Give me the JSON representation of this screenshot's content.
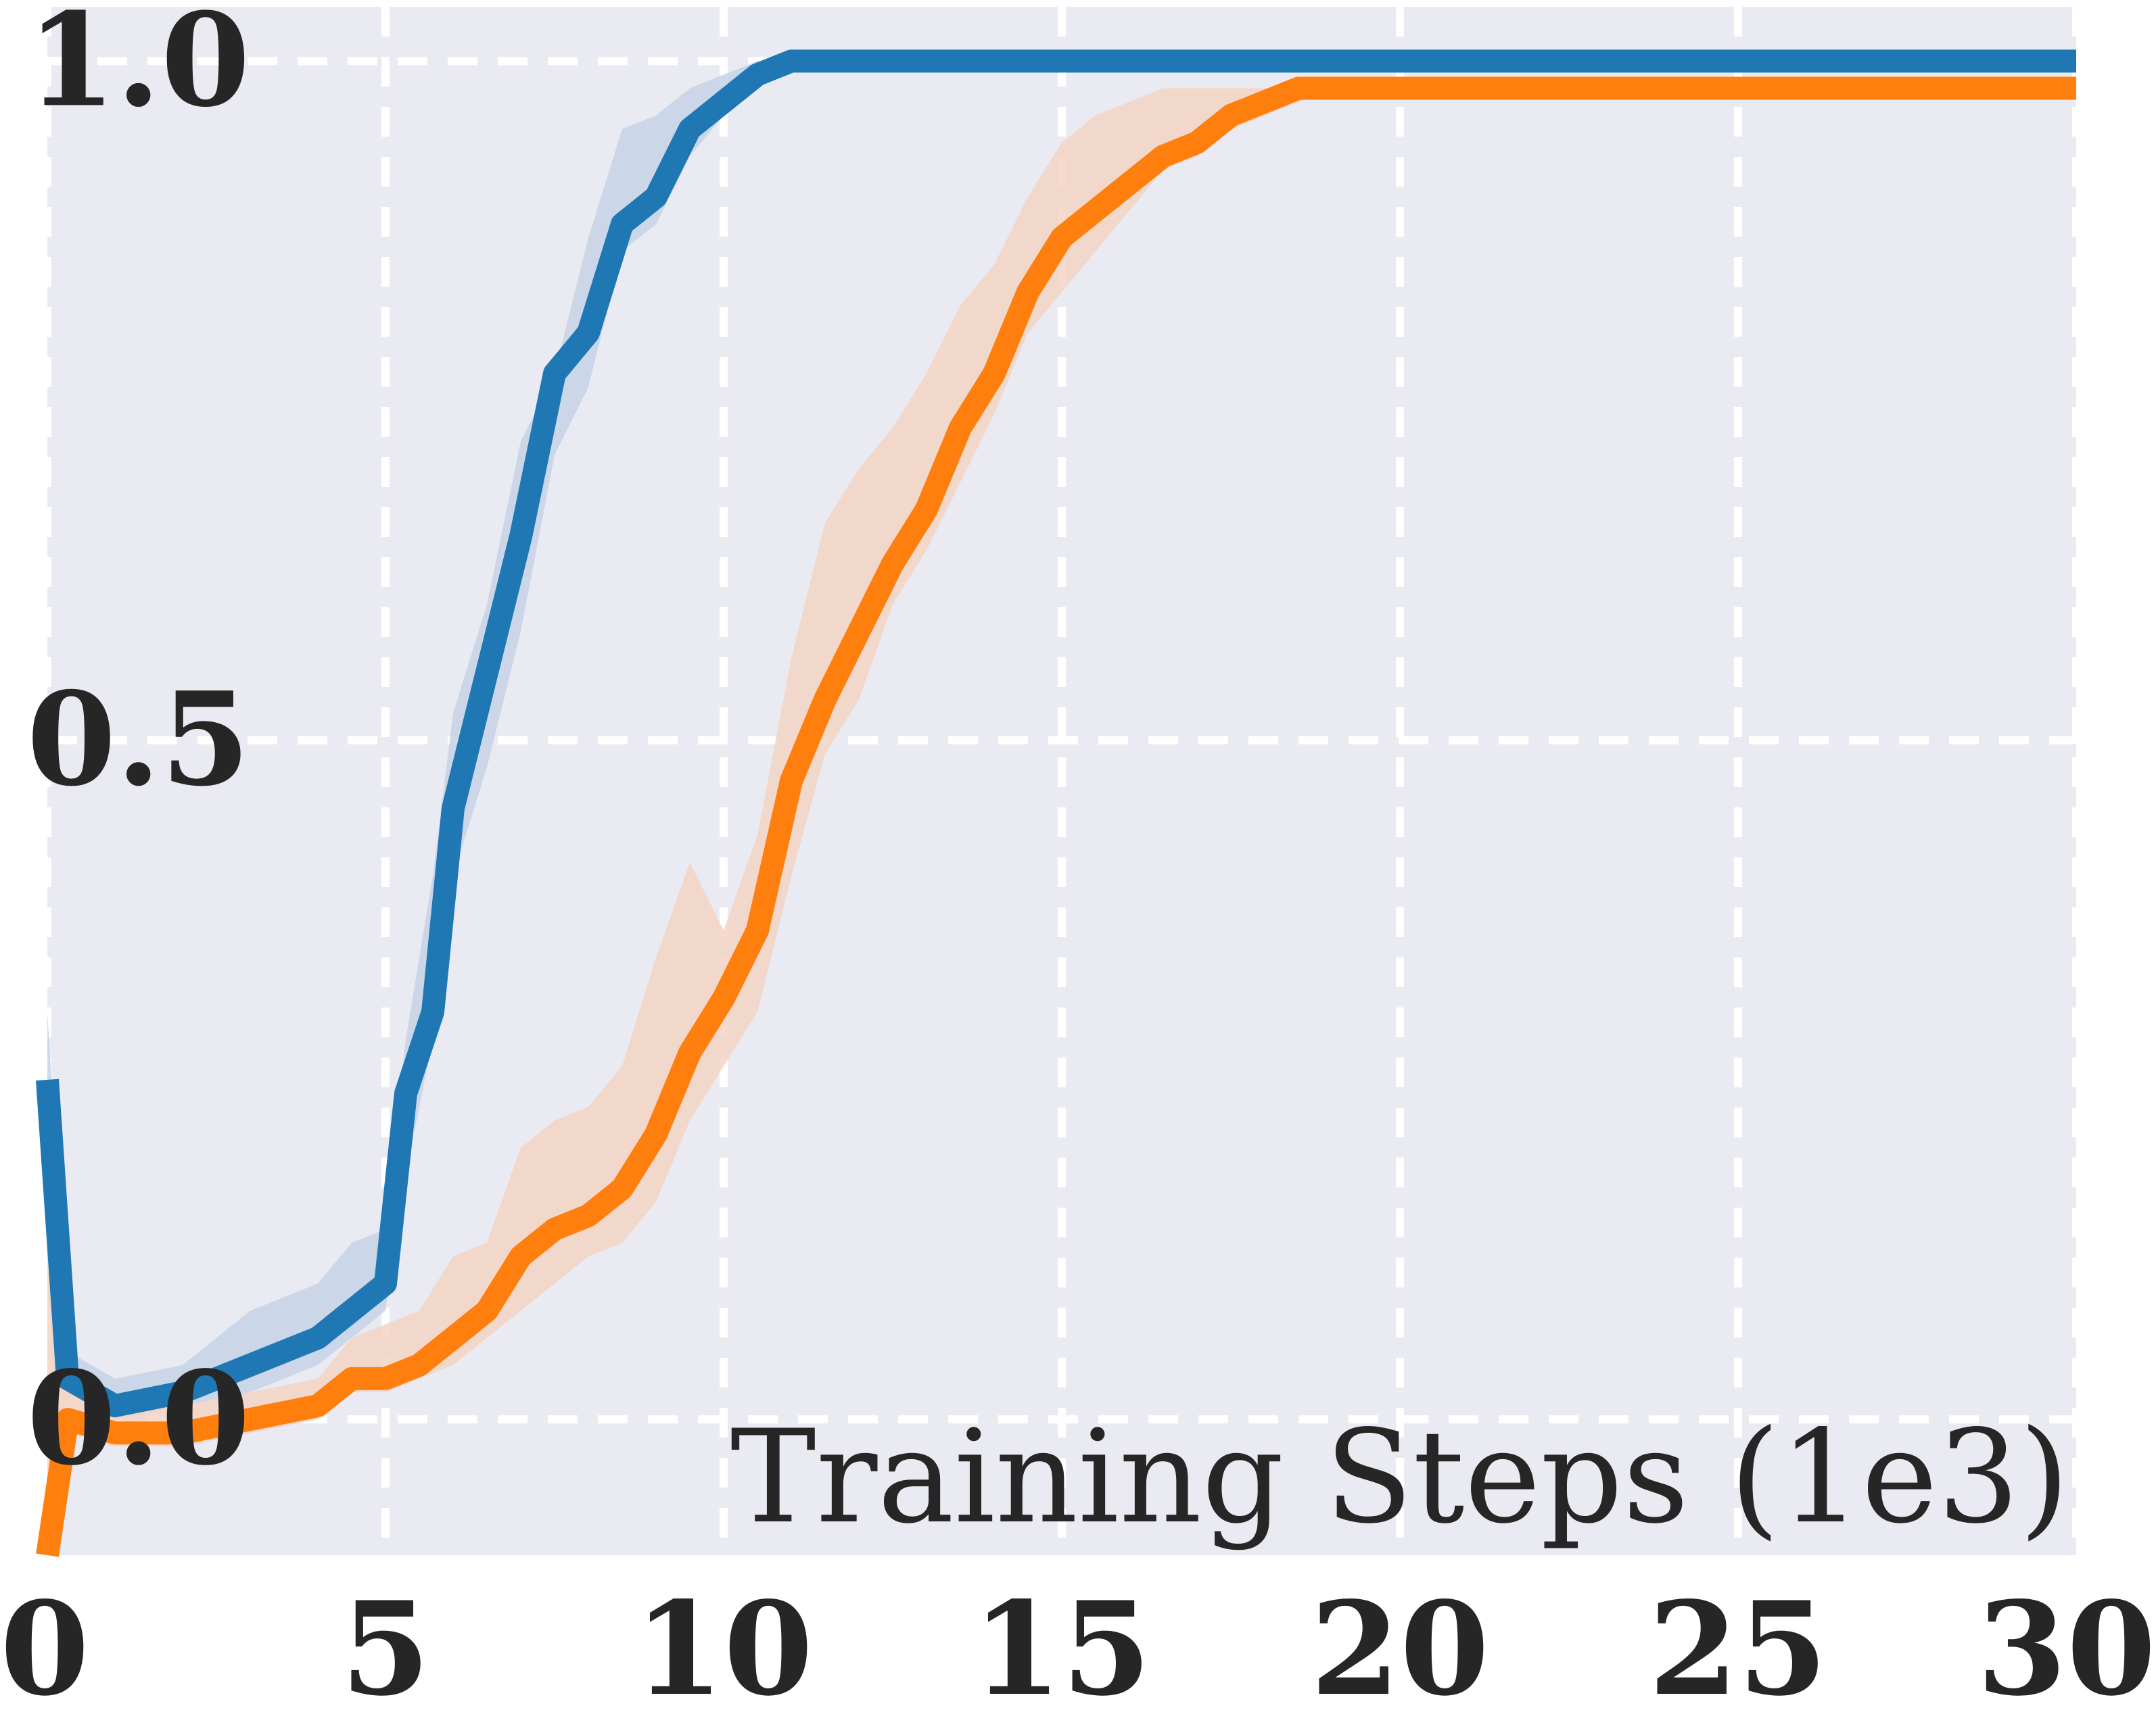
{
  "chart_data": {
    "type": "line",
    "title": "",
    "xlabel": "Training Steps (1e3)",
    "ylabel": "",
    "xlim": [
      0,
      30
    ],
    "ylim": [
      -0.1,
      1.04
    ],
    "xticks": [
      0,
      5,
      10,
      15,
      20,
      25,
      30
    ],
    "xtick_labels": [
      "0",
      "5",
      "10",
      "15",
      "20",
      "25",
      "30"
    ],
    "yticks": [
      0.0,
      0.5,
      1.0
    ],
    "ytick_labels": [
      "0.0",
      "0.5",
      "1.0"
    ],
    "grid": true,
    "grid_style": "dashed",
    "background": "#eaeaf2",
    "series": [
      {
        "color": "#1f77b4",
        "band_color": "#c6d4e6",
        "x": [
          0,
          0.3,
          1,
          2,
          3,
          4,
          4.5,
          5,
          5.3,
          5.7,
          6,
          6.5,
          7,
          7.5,
          8,
          8.5,
          9,
          9.5,
          10,
          10.5,
          11,
          12,
          15,
          20,
          25,
          30
        ],
        "y": [
          0.25,
          0.03,
          0.01,
          0.02,
          0.04,
          0.06,
          0.08,
          0.1,
          0.24,
          0.3,
          0.45,
          0.55,
          0.65,
          0.77,
          0.8,
          0.88,
          0.9,
          0.95,
          0.97,
          0.99,
          1.0,
          1.0,
          1.0,
          1.0,
          1.0,
          1.0
        ],
        "lower": [
          0.2,
          0.02,
          0.0,
          0.01,
          0.02,
          0.04,
          0.06,
          0.08,
          0.18,
          0.28,
          0.4,
          0.48,
          0.58,
          0.71,
          0.76,
          0.86,
          0.88,
          0.93,
          0.96,
          0.98,
          1.0,
          1.0,
          1.0,
          1.0,
          1.0,
          1.0
        ],
        "upper": [
          0.3,
          0.05,
          0.03,
          0.04,
          0.08,
          0.1,
          0.13,
          0.14,
          0.28,
          0.4,
          0.52,
          0.6,
          0.72,
          0.77,
          0.87,
          0.95,
          0.96,
          0.98,
          0.99,
          1.0,
          1.0,
          1.0,
          1.0,
          1.0,
          1.0,
          1.0
        ]
      },
      {
        "color": "#ff7f0e",
        "band_color": "#f3d3c4",
        "x": [
          0,
          0.3,
          1,
          2,
          3,
          4,
          4.5,
          5,
          5.5,
          6,
          6.5,
          7,
          7.5,
          8,
          8.5,
          9,
          9.5,
          10,
          10.5,
          11,
          11.5,
          12,
          12.5,
          13,
          13.5,
          14,
          14.5,
          15,
          15.5,
          16,
          16.5,
          17,
          17.5,
          18,
          18.5,
          19,
          20,
          25,
          30
        ],
        "y": [
          -0.1,
          0.0,
          -0.01,
          -0.01,
          0.0,
          0.01,
          0.03,
          0.03,
          0.04,
          0.06,
          0.08,
          0.12,
          0.14,
          0.15,
          0.17,
          0.21,
          0.27,
          0.31,
          0.36,
          0.47,
          0.53,
          0.58,
          0.63,
          0.67,
          0.73,
          0.77,
          0.83,
          0.87,
          0.89,
          0.91,
          0.93,
          0.94,
          0.96,
          0.97,
          0.98,
          0.98,
          0.98,
          0.98,
          0.98
        ],
        "lower": [
          -0.1,
          -0.01,
          -0.02,
          -0.02,
          -0.01,
          0.0,
          0.02,
          0.02,
          0.03,
          0.04,
          0.06,
          0.08,
          0.1,
          0.12,
          0.13,
          0.16,
          0.22,
          0.26,
          0.3,
          0.4,
          0.49,
          0.53,
          0.6,
          0.64,
          0.69,
          0.74,
          0.8,
          0.83,
          0.86,
          0.89,
          0.92,
          0.93,
          0.95,
          0.96,
          0.97,
          0.98,
          0.98,
          0.98,
          0.98
        ],
        "upper": [
          0.17,
          0.02,
          0.01,
          0.01,
          0.02,
          0.03,
          0.06,
          0.07,
          0.08,
          0.12,
          0.13,
          0.2,
          0.22,
          0.23,
          0.26,
          0.34,
          0.41,
          0.36,
          0.43,
          0.56,
          0.66,
          0.7,
          0.73,
          0.77,
          0.82,
          0.85,
          0.9,
          0.94,
          0.96,
          0.97,
          0.98,
          0.98,
          0.98,
          0.98,
          0.98,
          0.98,
          0.98,
          0.98,
          0.98
        ]
      }
    ]
  }
}
